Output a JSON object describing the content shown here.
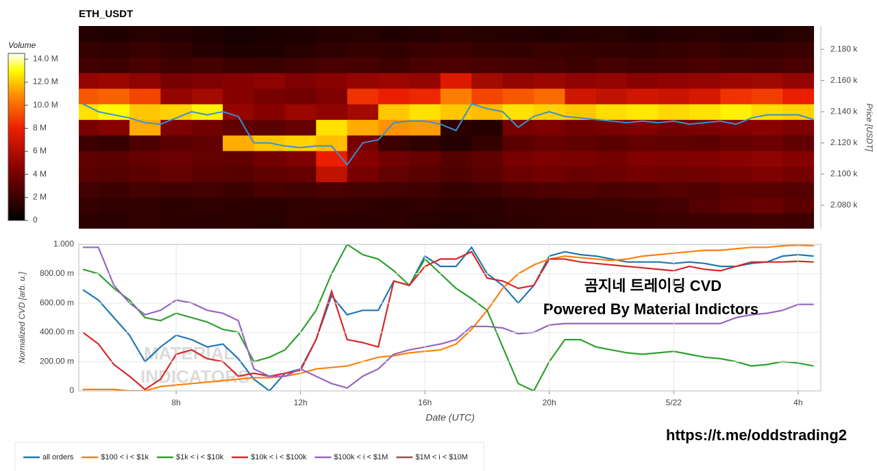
{
  "chart_data": [
    {
      "type": "heatmap",
      "title": "ETH_USDT",
      "colorbar_title": "Volume",
      "ylabel": "Price [USDT]",
      "clim": [
        0,
        14500000
      ],
      "cticks": [
        0,
        {
          "value": 2000000,
          "label": "2 M"
        },
        {
          "value": 4000000,
          "label": "4 M"
        },
        {
          "value": 6000000,
          "label": "6 M"
        },
        {
          "value": 8000000,
          "label": "8 M"
        },
        {
          "value": 10000000,
          "label": "10.0 M"
        },
        {
          "value": 12000000,
          "label": "12.0 M"
        },
        {
          "value": 14000000,
          "label": "14.0 M"
        }
      ],
      "xlim": [
        4.87,
        28.73
      ],
      "ylim": [
        2065,
        2195
      ],
      "yticks": [
        {
          "value": 2080,
          "label": "2.080 k"
        },
        {
          "value": 2100,
          "label": "2.100 k"
        },
        {
          "value": 2120,
          "label": "2.120 k"
        },
        {
          "value": 2140,
          "label": "2.140 k"
        },
        {
          "value": 2160,
          "label": "2.160 k"
        },
        {
          "value": 2180,
          "label": "2.180 k"
        }
      ],
      "x": [
        5,
        6,
        7,
        8,
        9,
        10,
        11,
        12,
        13,
        14,
        15,
        16,
        17,
        18,
        19,
        20,
        21,
        22,
        23,
        24,
        25,
        26,
        27,
        28
      ],
      "y": [
        2070,
        2080,
        2090,
        2100,
        2110,
        2120,
        2130,
        2140,
        2150,
        2160,
        2170,
        2180,
        2190
      ],
      "z": [
        [
          1500000.0,
          1400000.0,
          1600000.0,
          1500000.0,
          1400000.0,
          1500000.0,
          1300000.0,
          1600000.0,
          1500000.0,
          1400000.0,
          1500000.0,
          1300000.0,
          1200000.0,
          1300000.0,
          1500000.0,
          1600000.0,
          1700000.0,
          1800000.0,
          1800000.0,
          1900000.0,
          2000000.0,
          2000000.0,
          2100000.0,
          2000000.0
        ],
        [
          1800000.0,
          1600000.0,
          1700000.0,
          1500000.0,
          1600000.0,
          1500000.0,
          1400000.0,
          1600000.0,
          1700000.0,
          1600000.0,
          1500000.0,
          1600000.0,
          1500000.0,
          1400000.0,
          1600000.0,
          1700000.0,
          1800000.0,
          1900000.0,
          2000000.0,
          2200000.0,
          2800000.0,
          3200000.0,
          3500000.0,
          3000000.0
        ],
        [
          2200000.0,
          2000000.0,
          2300000.0,
          2100000.0,
          2200000.0,
          2000000.0,
          2400000.0,
          2200000.0,
          2500000.0,
          2300000.0,
          2200000.0,
          2100000.0,
          1800000.0,
          2000000.0,
          2400000.0,
          2600000.0,
          2700000.0,
          2500000.0,
          2600000.0,
          2800000.0,
          2700000.0,
          3000000.0,
          2900000.0,
          2800000.0
        ],
        [
          3000000.0,
          2800000.0,
          3100000.0,
          3300000.0,
          3000000.0,
          2900000.0,
          3200000.0,
          3400000.0,
          6500000.0,
          4000000.0,
          3300000.0,
          3000000.0,
          2600000.0,
          3000000.0,
          3600000.0,
          3800000.0,
          3500000.0,
          3600000.0,
          3900000.0,
          3700000.0,
          3800000.0,
          4000000.0,
          4200000.0,
          3900000.0
        ],
        [
          3200000.0,
          3000000.0,
          3400000.0,
          3600000.0,
          3300000.0,
          3200000.0,
          3800000.0,
          4200000.0,
          8000000.0,
          4500000.0,
          3800000.0,
          3400000.0,
          2800000.0,
          3200000.0,
          4000000.0,
          4200000.0,
          4100000.0,
          3900000.0,
          4300000.0,
          4200000.0,
          4400000.0,
          4600000.0,
          4800000.0,
          4500000.0
        ],
        [
          2000000.0,
          1800000.0,
          2600000.0,
          3000000.0,
          3200000.0,
          11500000.0,
          12000000.0,
          12200000.0,
          11800000.0,
          4000000.0,
          2000000.0,
          1600000.0,
          1200000.0,
          1800000.0,
          3000000.0,
          3400000.0,
          3200000.0,
          3000000.0,
          3300000.0,
          3200000.0,
          3100000.0,
          3400000.0,
          3600000.0,
          3200000.0
        ],
        [
          4000000.0,
          4500000.0,
          11500000.0,
          4200000.0,
          3800000.0,
          3200000.0,
          3000000.0,
          3400000.0,
          12500000.0,
          11500000.0,
          11000000.0,
          11200000.0,
          1500000.0,
          1200000.0,
          4000000.0,
          4200000.0,
          3800000.0,
          4000000.0,
          4300000.0,
          3900000.0,
          4100000.0,
          4400000.0,
          4600000.0,
          4200000.0
        ],
        [
          12500000.0,
          13000000.0,
          12000000.0,
          12200000.0,
          12800000.0,
          5000000.0,
          4500000.0,
          5200000.0,
          4800000.0,
          5500000.0,
          12000000.0,
          12500000.0,
          12000000.0,
          11800000.0,
          12500000.0,
          12200000.0,
          12000000.0,
          12400000.0,
          12600000.0,
          12300000.0,
          12500000.0,
          12800000.0,
          12400000.0,
          12200000.0
        ],
        [
          9500000.0,
          9800000.0,
          9000000.0,
          5000000.0,
          5500000.0,
          4500000.0,
          4000000.0,
          3800000.0,
          4200000.0,
          8500000.0,
          8000000.0,
          8200000.0,
          10500000.0,
          9000000.0,
          9500000.0,
          10000000.0,
          7000000.0,
          6500000.0,
          7000000.0,
          6800000.0,
          7200000.0,
          8500000.0,
          8800000.0,
          8000000.0
        ],
        [
          5000000.0,
          5200000.0,
          4800000.0,
          4000000.0,
          4200000.0,
          4500000.0,
          4800000.0,
          4200000.0,
          4600000.0,
          5000000.0,
          5200000.0,
          5000000.0,
          7500000.0,
          5500000.0,
          5000000.0,
          5200000.0,
          4800000.0,
          5000000.0,
          4600000.0,
          4800000.0,
          5000000.0,
          5200000.0,
          5400000.0,
          5000000.0
        ],
        [
          2200000.0,
          2000000.0,
          2400000.0,
          2100000.0,
          2300000.0,
          2000000.0,
          1900000.0,
          2200000.0,
          2400000.0,
          2300000.0,
          2100000.0,
          2500000.0,
          2600000.0,
          2400000.0,
          2300000.0,
          2200000.0,
          2000000.0,
          2300000.0,
          2100000.0,
          2200000.0,
          2400000.0,
          2300000.0,
          2200000.0,
          2400000.0
        ],
        [
          1800000.0,
          1600000.0,
          1900000.0,
          1700000.0,
          1200000.0,
          1000000.0,
          1100000.0,
          1300000.0,
          1600000.0,
          1800000.0,
          1700000.0,
          1900000.0,
          2000000.0,
          1800000.0,
          1700000.0,
          1900000.0,
          1800000.0,
          1700000.0,
          1600000.0,
          1800000.0,
          1900000.0,
          1700000.0,
          1800000.0,
          1900000.0
        ],
        [
          1200000.0,
          1100000.0,
          1300000.0,
          1200000.0,
          1000000.0,
          800000.0,
          900000.0,
          1000000.0,
          1200000.0,
          1300000.0,
          1100000.0,
          1200000.0,
          1400000.0,
          1300000.0,
          1200000.0,
          1100000.0,
          1200000.0,
          1300000.0,
          1100000.0,
          1200000.0,
          1300000.0,
          1200000.0,
          1100000.0,
          1300000.0
        ]
      ],
      "price_line": {
        "color": "#3a8fd0",
        "x": [
          5,
          5.5,
          6,
          6.5,
          7,
          7.5,
          8,
          8.5,
          9,
          9.5,
          10,
          10.5,
          11,
          11.5,
          12,
          12.5,
          13,
          13.5,
          14,
          14.5,
          15,
          15.5,
          16,
          16.5,
          17,
          17.5,
          18,
          18.5,
          19,
          19.5,
          20,
          20.5,
          21,
          21.5,
          22,
          22.5,
          23,
          23.5,
          24,
          24.5,
          25,
          25.5,
          26,
          26.5,
          27,
          27.5,
          28,
          28.5
        ],
        "values": [
          2145,
          2140,
          2138,
          2136,
          2133,
          2132,
          2136,
          2140,
          2138,
          2140,
          2137,
          2120,
          2120,
          2118,
          2117,
          2118,
          2118,
          2106,
          2120,
          2122,
          2133,
          2134,
          2134,
          2132,
          2128,
          2145,
          2142,
          2140,
          2130,
          2137,
          2140,
          2137,
          2136,
          2135,
          2134,
          2133,
          2134,
          2133,
          2134,
          2132,
          2133,
          2134,
          2132,
          2136,
          2138,
          2138,
          2138,
          2135
        ]
      }
    },
    {
      "type": "line",
      "xlabel": "Date (UTC)",
      "ylabel": "Normalized CVD [arb. u.]",
      "grid": true,
      "legend": "bottom",
      "xlim": [
        4.87,
        28.73
      ],
      "ylim": [
        0,
        1
      ],
      "xticks": [
        {
          "value": 8,
          "label": "8h"
        },
        {
          "value": 12,
          "label": "12h"
        },
        {
          "value": 16,
          "label": "16h"
        },
        {
          "value": 20,
          "label": "20h"
        },
        {
          "value": 24,
          "label": "5/22"
        },
        {
          "value": 28,
          "label": "4h"
        }
      ],
      "yticks": [
        0,
        {
          "value": 0.2,
          "label": "200.00 m"
        },
        {
          "value": 0.4,
          "label": "400.00 m"
        },
        {
          "value": 0.6,
          "label": "600.00 m"
        },
        {
          "value": 0.8,
          "label": "800.00 m"
        },
        {
          "value": 1,
          "label": "1.000"
        }
      ],
      "x": [
        5,
        5.5,
        6,
        6.5,
        7,
        7.5,
        8,
        8.5,
        9,
        9.5,
        10,
        10.5,
        11,
        11.5,
        12,
        12.5,
        13,
        13.5,
        14,
        14.5,
        15,
        15.5,
        16,
        16.5,
        17,
        17.5,
        18,
        18.5,
        19,
        19.5,
        20,
        20.5,
        21,
        21.5,
        22,
        22.5,
        23,
        23.5,
        24,
        24.5,
        25,
        25.5,
        26,
        26.5,
        27,
        27.5,
        28,
        28.5
      ],
      "series": [
        {
          "name": "all orders",
          "color": "#1f77b4",
          "values": [
            0.69,
            0.62,
            0.5,
            0.38,
            0.2,
            0.3,
            0.38,
            0.35,
            0.3,
            0.32,
            0.22,
            0.08,
            0,
            0.12,
            0.15,
            0.35,
            0.65,
            0.52,
            0.55,
            0.55,
            0.75,
            0.72,
            0.92,
            0.85,
            0.85,
            0.98,
            0.8,
            0.72,
            0.6,
            0.72,
            0.92,
            0.95,
            0.93,
            0.92,
            0.9,
            0.88,
            0.88,
            0.88,
            0.87,
            0.88,
            0.87,
            0.85,
            0.85,
            0.87,
            0.88,
            0.92,
            0.93,
            0.92
          ]
        },
        {
          "name": "$100 < i < $1k",
          "color": "#ff7f0e",
          "values": [
            0.01,
            0.01,
            0.01,
            0,
            0,
            0.03,
            0.04,
            0.05,
            0.06,
            0.07,
            0.08,
            0.09,
            0.09,
            0.1,
            0.12,
            0.15,
            0.16,
            0.17,
            0.2,
            0.23,
            0.24,
            0.26,
            0.27,
            0.28,
            0.32,
            0.42,
            0.55,
            0.7,
            0.8,
            0.86,
            0.9,
            0.92,
            0.91,
            0.9,
            0.89,
            0.9,
            0.92,
            0.93,
            0.94,
            0.95,
            0.96,
            0.96,
            0.97,
            0.98,
            0.98,
            0.99,
            0.995,
            0.99
          ]
        },
        {
          "name": "$1k < i < $10k",
          "color": "#2ca02c",
          "values": [
            0.83,
            0.8,
            0.7,
            0.62,
            0.5,
            0.48,
            0.53,
            0.5,
            0.47,
            0.42,
            0.4,
            0.2,
            0.23,
            0.28,
            0.4,
            0.55,
            0.8,
            1,
            0.93,
            0.9,
            0.82,
            0.72,
            0.9,
            0.8,
            0.7,
            0.63,
            0.55,
            0.3,
            0.05,
            0,
            0.2,
            0.35,
            0.35,
            0.3,
            0.28,
            0.26,
            0.25,
            0.26,
            0.27,
            0.25,
            0.23,
            0.22,
            0.2,
            0.17,
            0.18,
            0.2,
            0.19,
            0.17
          ]
        },
        {
          "name": "$10k < i < $100k",
          "color": "#d62728",
          "values": [
            0.4,
            0.32,
            0.18,
            0.1,
            0.01,
            0.08,
            0.25,
            0.28,
            0.22,
            0.2,
            0.1,
            0.12,
            0.1,
            0.12,
            0.14,
            0.35,
            0.68,
            0.35,
            0.33,
            0.3,
            0.75,
            0.72,
            0.85,
            0.9,
            0.9,
            0.95,
            0.77,
            0.75,
            0.7,
            0.72,
            0.9,
            0.9,
            0.88,
            0.87,
            0.86,
            0.85,
            0.84,
            0.83,
            0.82,
            0.85,
            0.83,
            0.82,
            0.85,
            0.88,
            0.88,
            0.88,
            0.885,
            0.88
          ]
        },
        {
          "name": "$100k < i < $1M",
          "color": "#9467bd",
          "values": [
            0.98,
            0.98,
            0.72,
            0.6,
            0.52,
            0.55,
            0.62,
            0.6,
            0.55,
            0.53,
            0.48,
            0.15,
            0.1,
            0.1,
            0.15,
            0.1,
            0.05,
            0.02,
            0.1,
            0.15,
            0.25,
            0.28,
            0.3,
            0.32,
            0.35,
            0.44,
            0.44,
            0.43,
            0.39,
            0.4,
            0.45,
            0.46,
            0.46,
            0.46,
            0.46,
            0.46,
            0.46,
            0.46,
            0.46,
            0.46,
            0.46,
            0.46,
            0.5,
            0.52,
            0.53,
            0.55,
            0.59,
            0.59
          ]
        },
        {
          "name": "$1M < i < $10M",
          "color": "#8c564b",
          "values": [
            null,
            null,
            null,
            null,
            null,
            null,
            null,
            null,
            null,
            null,
            null,
            null,
            null,
            null,
            null,
            null,
            null,
            null,
            null,
            null,
            null,
            null,
            null,
            null,
            null,
            null,
            null,
            null,
            null,
            null,
            null,
            null,
            null,
            null,
            null,
            null,
            null,
            null,
            null,
            null,
            null,
            null,
            null,
            null,
            null,
            null,
            null,
            null
          ]
        }
      ],
      "watermark": [
        "MATERIAL",
        "INDICATORS"
      ],
      "annotations": [
        "곰지네 트레이딩 CVD",
        "Powered By Material Indictors",
        "https://t.me/oddstrading2"
      ]
    }
  ]
}
